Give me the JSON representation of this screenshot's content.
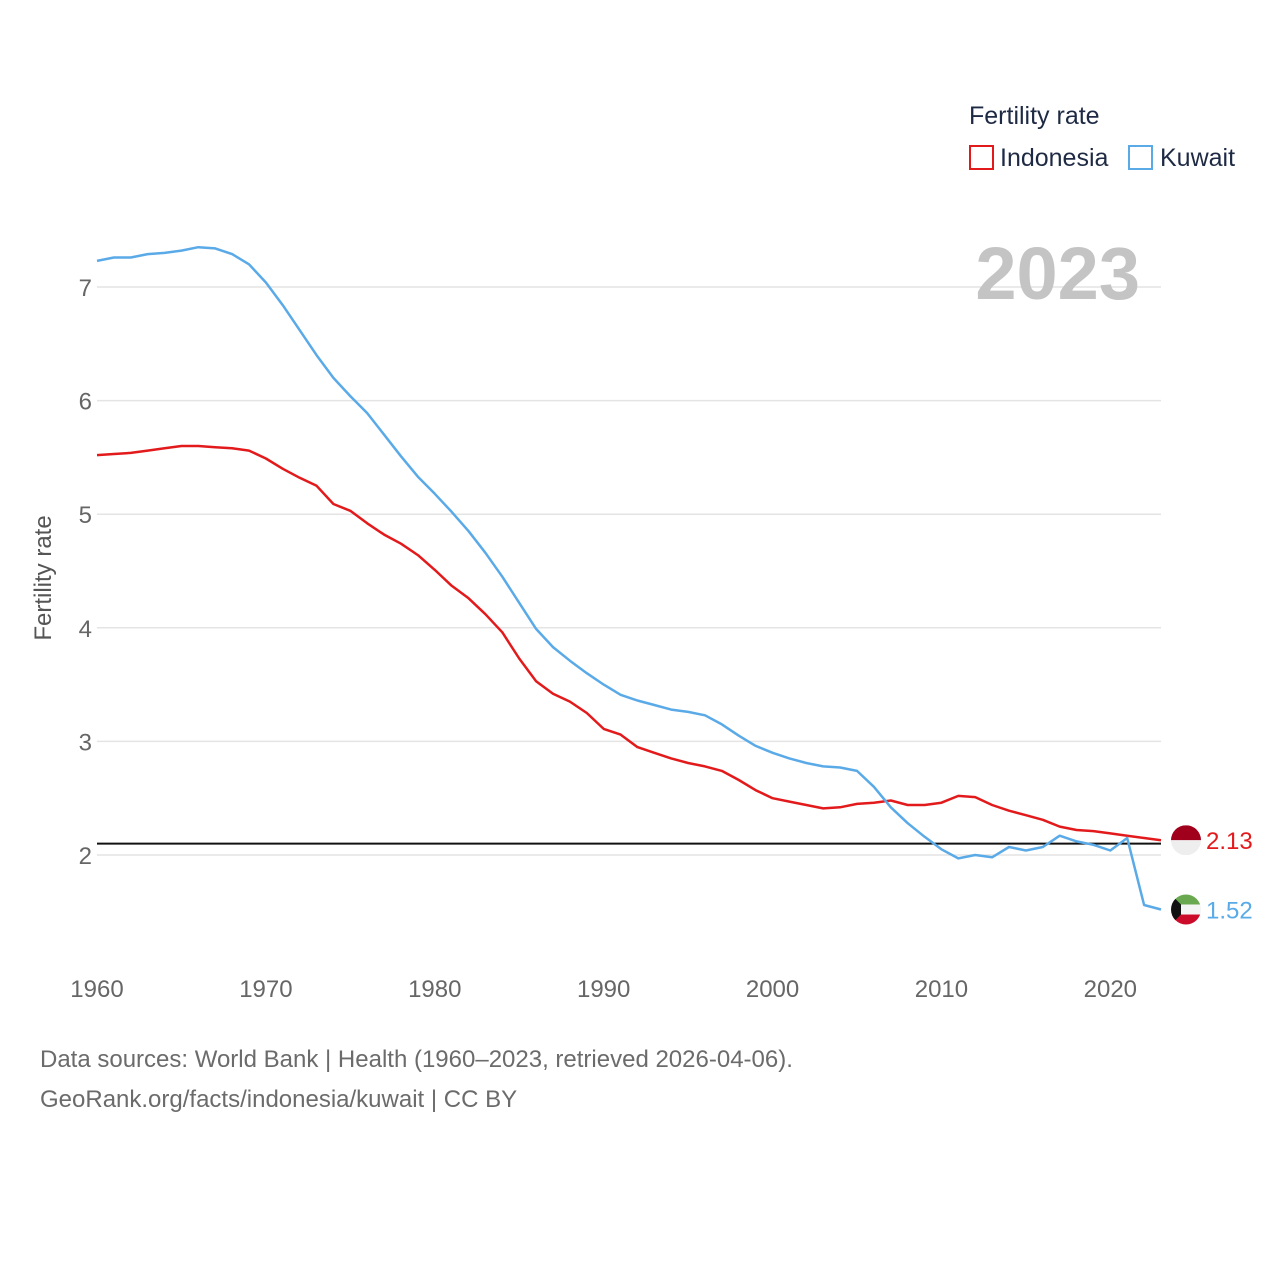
{
  "chart_data": {
    "type": "line",
    "title": "",
    "xlabel": "",
    "ylabel": "Fertility rate",
    "year_label": "2023",
    "legend_title": "Fertility rate",
    "xlim": [
      1960,
      2023
    ],
    "ylim": [
      1.1,
      7.6
    ],
    "x_ticks": [
      1960,
      1970,
      1980,
      1990,
      2000,
      2010,
      2020
    ],
    "y_ticks": [
      2,
      3,
      4,
      5,
      6,
      7
    ],
    "reference_line": 2.1,
    "x": [
      1960,
      1961,
      1962,
      1963,
      1964,
      1965,
      1966,
      1967,
      1968,
      1969,
      1970,
      1971,
      1972,
      1973,
      1974,
      1975,
      1976,
      1977,
      1978,
      1979,
      1980,
      1981,
      1982,
      1983,
      1984,
      1985,
      1986,
      1987,
      1988,
      1989,
      1990,
      1991,
      1992,
      1993,
      1994,
      1995,
      1996,
      1997,
      1998,
      1999,
      2000,
      2001,
      2002,
      2003,
      2004,
      2005,
      2006,
      2007,
      2008,
      2009,
      2010,
      2011,
      2012,
      2013,
      2014,
      2015,
      2016,
      2017,
      2018,
      2019,
      2020,
      2021,
      2022,
      2023
    ],
    "series": [
      {
        "name": "Indonesia",
        "color": "#e31a1c",
        "end_label": "2.13",
        "flag": "indonesia-flag-icon",
        "values": [
          5.52,
          5.53,
          5.54,
          5.56,
          5.58,
          5.6,
          5.6,
          5.59,
          5.58,
          5.56,
          5.49,
          5.4,
          5.32,
          5.25,
          5.09,
          5.03,
          4.92,
          4.82,
          4.74,
          4.64,
          4.51,
          4.37,
          4.26,
          4.12,
          3.96,
          3.73,
          3.53,
          3.42,
          3.35,
          3.25,
          3.11,
          3.06,
          2.95,
          2.9,
          2.85,
          2.81,
          2.78,
          2.74,
          2.66,
          2.57,
          2.5,
          2.47,
          2.44,
          2.41,
          2.42,
          2.45,
          2.46,
          2.48,
          2.44,
          2.44,
          2.46,
          2.52,
          2.51,
          2.44,
          2.39,
          2.35,
          2.31,
          2.25,
          2.22,
          2.21,
          2.19,
          2.17,
          2.15,
          2.13
        ]
      },
      {
        "name": "Kuwait",
        "color": "#5aaae8",
        "end_label": "1.52",
        "flag": "kuwait-flag-icon",
        "values": [
          7.23,
          7.26,
          7.26,
          7.29,
          7.3,
          7.32,
          7.35,
          7.34,
          7.29,
          7.2,
          7.04,
          6.84,
          6.62,
          6.4,
          6.2,
          6.04,
          5.89,
          5.7,
          5.51,
          5.33,
          5.18,
          5.02,
          4.85,
          4.66,
          4.45,
          4.22,
          3.99,
          3.83,
          3.71,
          3.6,
          3.5,
          3.41,
          3.36,
          3.32,
          3.28,
          3.26,
          3.23,
          3.15,
          3.05,
          2.96,
          2.9,
          2.85,
          2.81,
          2.78,
          2.77,
          2.74,
          2.6,
          2.42,
          2.28,
          2.16,
          2.05,
          1.97,
          2.0,
          1.98,
          2.07,
          2.04,
          2.07,
          2.17,
          2.12,
          2.09,
          2.04,
          2.15,
          1.56,
          1.52
        ]
      }
    ]
  },
  "footer": {
    "sources": "Data sources: World Bank | Health (1960–2023, retrieved 2026-04-06).",
    "link": "GeoRank.org/facts/indonesia/kuwait | CC BY"
  }
}
